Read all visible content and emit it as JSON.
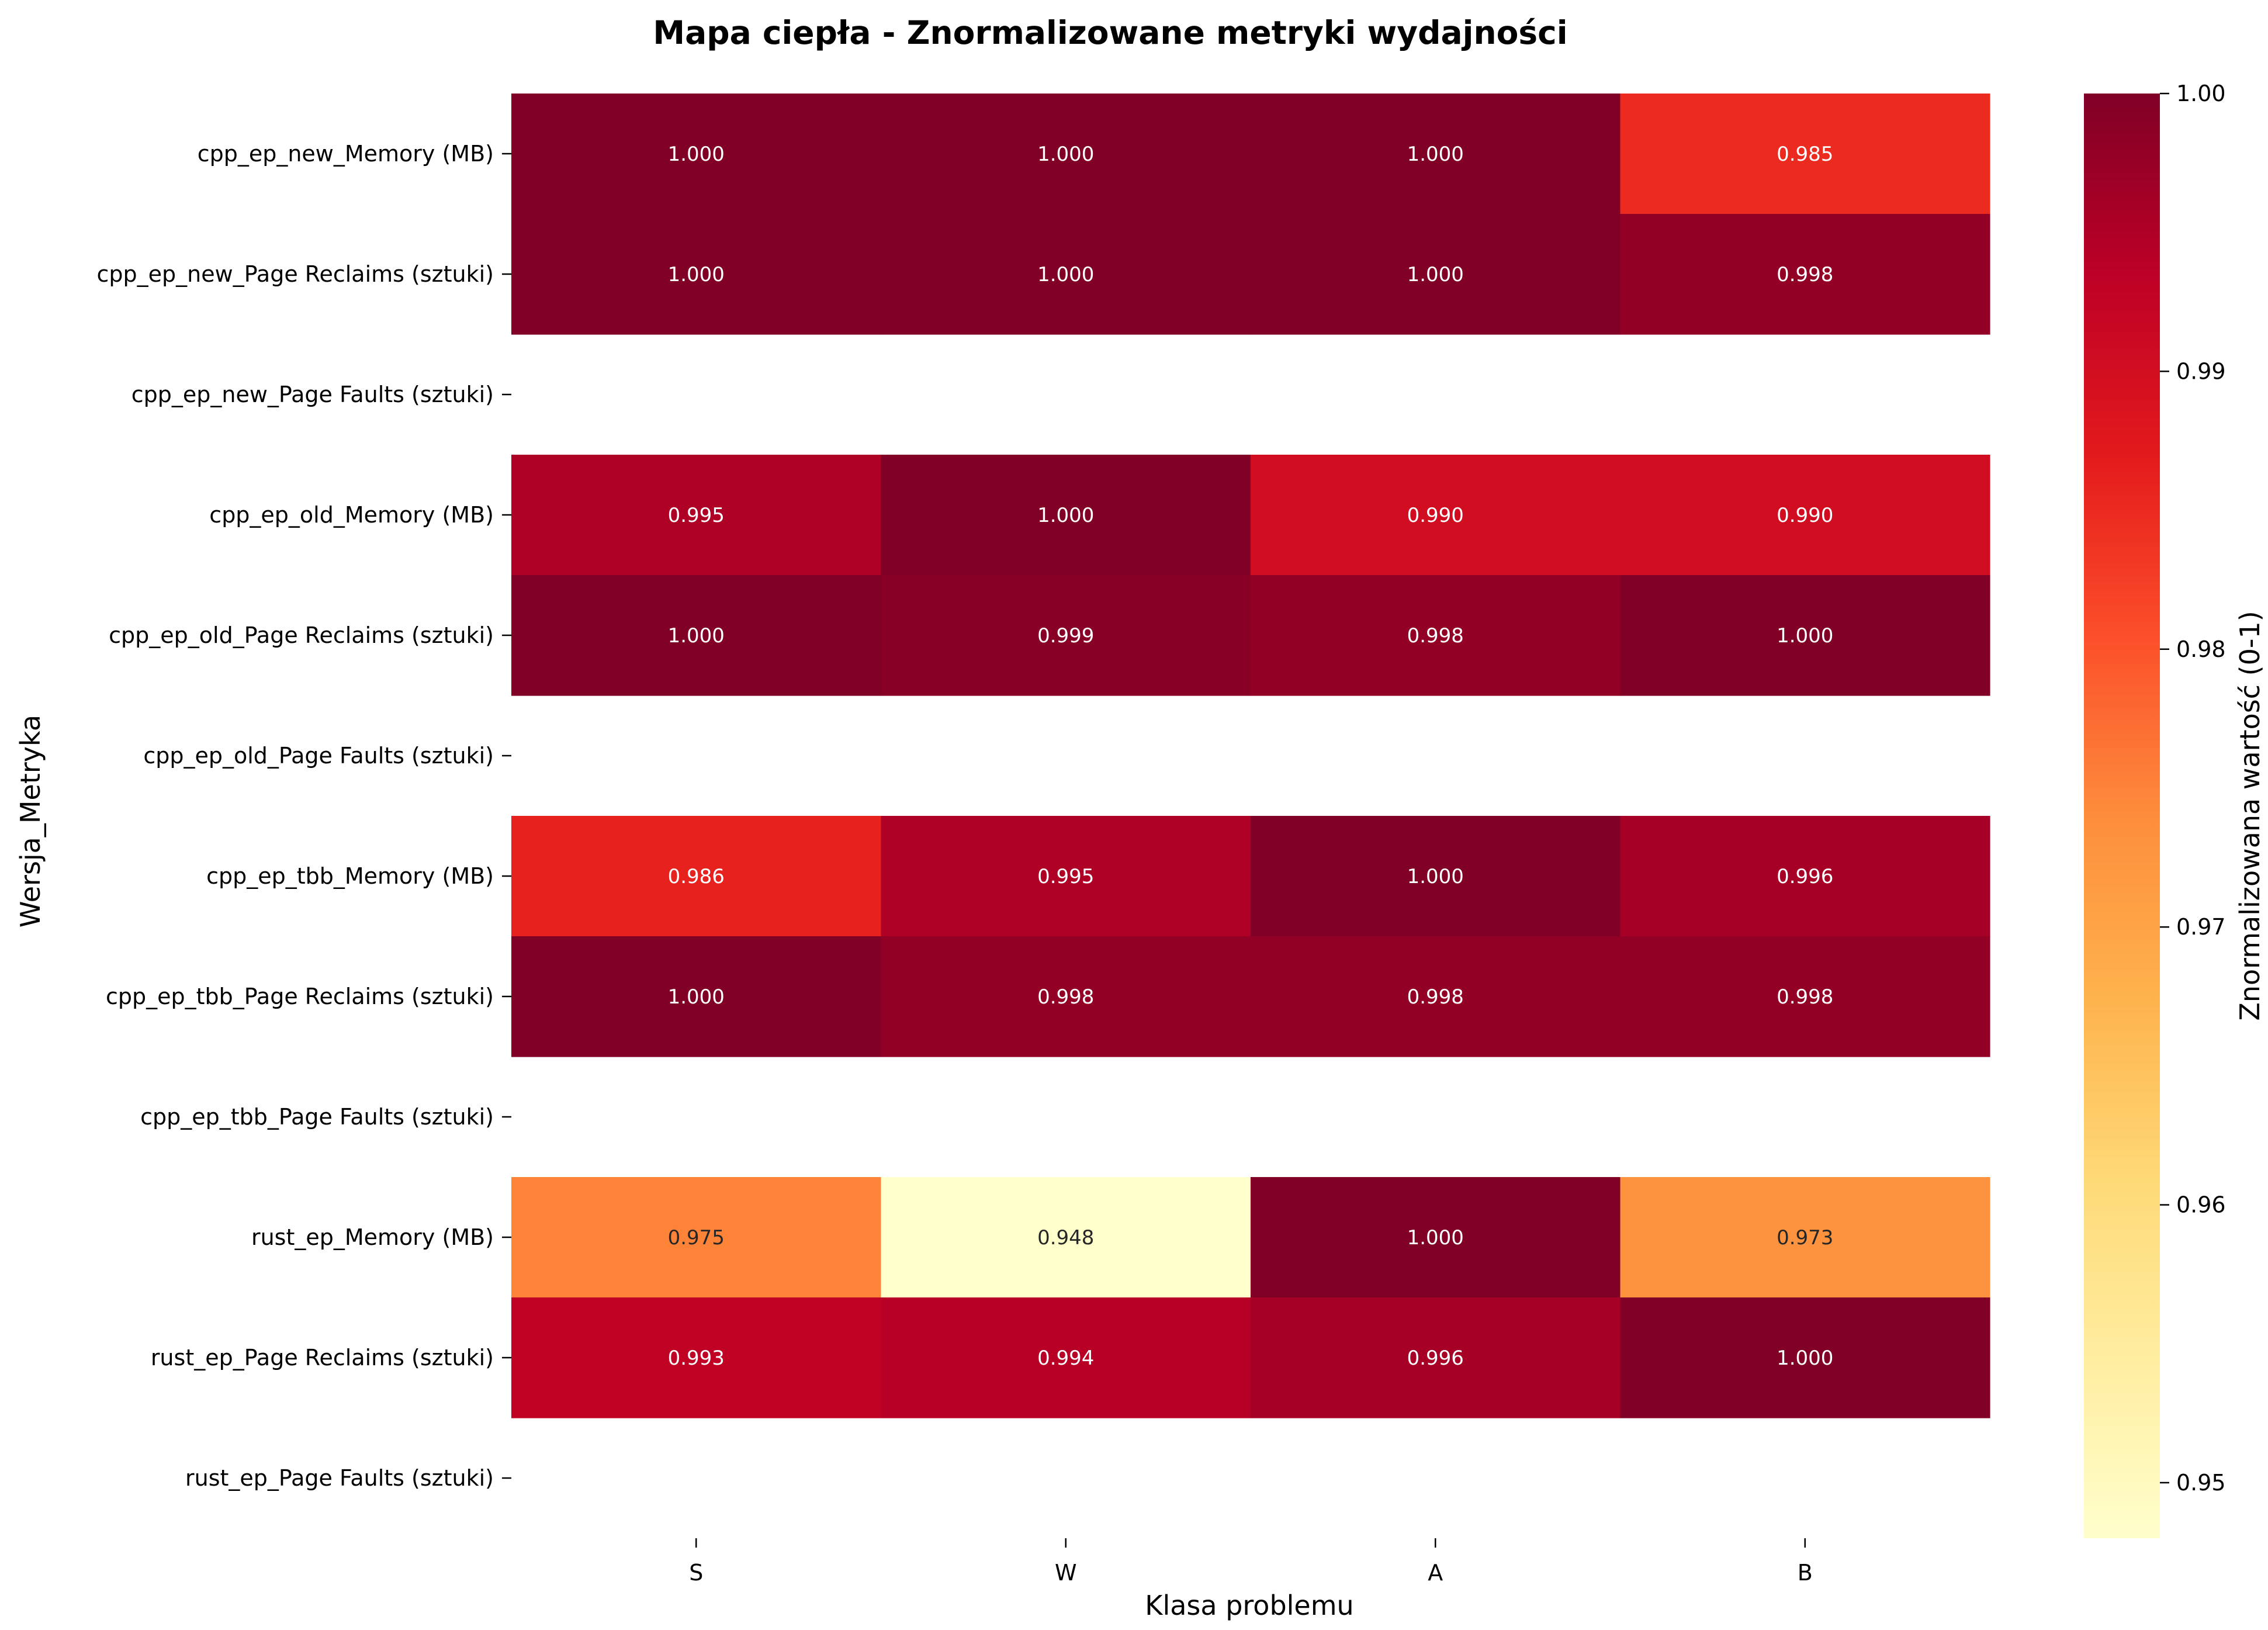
{
  "chart_data": {
    "type": "heatmap",
    "title": "Mapa ciepła - Znormalizowane metryki wydajności",
    "xlabel": "Klasa problemu",
    "ylabel": "Wersja_Metryka",
    "colorbar_label": "Znormalizowana wartość (0-1)",
    "colormap": "YlOrRd",
    "x_categories": [
      "S",
      "W",
      "A",
      "B"
    ],
    "y_categories": [
      "cpp_ep_new_Memory (MB)",
      "cpp_ep_new_Page Reclaims (sztuki)",
      "cpp_ep_new_Page Faults (sztuki)",
      "cpp_ep_old_Memory (MB)",
      "cpp_ep_old_Page Reclaims (sztuki)",
      "cpp_ep_old_Page Faults (sztuki)",
      "cpp_ep_tbb_Memory (MB)",
      "cpp_ep_tbb_Page Reclaims (sztuki)",
      "cpp_ep_tbb_Page Faults (sztuki)",
      "rust_ep_Memory (MB)",
      "rust_ep_Page Reclaims (sztuki)",
      "rust_ep_Page Faults (sztuki)"
    ],
    "values": [
      [
        1.0,
        1.0,
        1.0,
        0.985
      ],
      [
        1.0,
        1.0,
        1.0,
        0.998
      ],
      [
        null,
        null,
        null,
        null
      ],
      [
        0.995,
        1.0,
        0.99,
        0.99
      ],
      [
        1.0,
        0.999,
        0.998,
        1.0
      ],
      [
        null,
        null,
        null,
        null
      ],
      [
        0.986,
        0.995,
        1.0,
        0.996
      ],
      [
        1.0,
        0.998,
        0.998,
        0.998
      ],
      [
        null,
        null,
        null,
        null
      ],
      [
        0.975,
        0.948,
        1.0,
        0.973
      ],
      [
        0.993,
        0.994,
        0.996,
        1.0
      ],
      [
        null,
        null,
        null,
        null
      ]
    ],
    "value_format": "0.000",
    "colorbar_range": [
      0.948,
      1.0
    ],
    "colorbar_ticks": [
      "0.95",
      "0.96",
      "0.97",
      "0.98",
      "0.99",
      "1.00"
    ],
    "colorbar_tick_values": [
      0.95,
      0.96,
      0.97,
      0.98,
      0.99,
      1.0
    ],
    "grid": false
  }
}
